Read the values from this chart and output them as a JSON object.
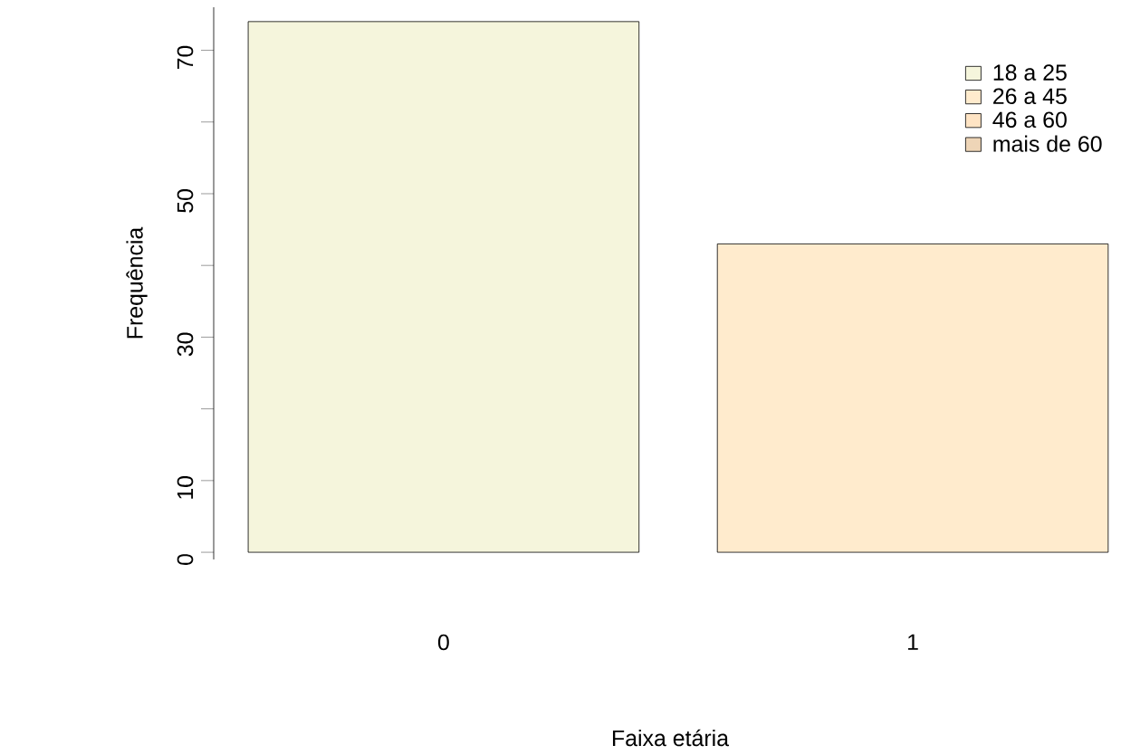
{
  "chart_data": {
    "type": "bar",
    "xlabel": "Faixa etária",
    "ylabel": "Frequência",
    "categories": [
      "0",
      "1"
    ],
    "series": [
      {
        "name": "18 a 25",
        "color": "#f5f5dc",
        "values": [
          74,
          null
        ]
      },
      {
        "name": "26 a 45",
        "color": "#ffebcd",
        "values": [
          null,
          43
        ]
      },
      {
        "name": "46 a 60",
        "color": "#ffe4c4",
        "values": [
          null,
          null
        ]
      },
      {
        "name": "mais de 60",
        "color": "#eed5b7",
        "values": [
          null,
          null
        ]
      }
    ],
    "ylim": [
      -1,
      76
    ],
    "yticks": [
      0,
      10,
      {
        "value": 20,
        "label": null
      },
      30,
      {
        "value": 40,
        "label": null
      },
      50,
      {
        "value": 60,
        "label": null
      },
      70
    ],
    "legend": "top right"
  }
}
